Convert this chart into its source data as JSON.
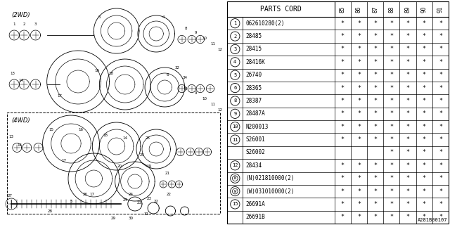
{
  "title": "A281B00107",
  "table_header": "PARTS CORD",
  "col_headers": [
    "85",
    "86",
    "87",
    "88",
    "89",
    "90",
    "91"
  ],
  "rows": [
    {
      "num": "1",
      "code": "062610280(2)",
      "stars": [
        1,
        1,
        1,
        1,
        1,
        1,
        1
      ],
      "circle": true,
      "sub": false,
      "prefix": ""
    },
    {
      "num": "2",
      "code": "28485",
      "stars": [
        1,
        1,
        1,
        1,
        1,
        1,
        1
      ],
      "circle": true,
      "sub": false,
      "prefix": ""
    },
    {
      "num": "3",
      "code": "28415",
      "stars": [
        1,
        1,
        1,
        1,
        1,
        1,
        1
      ],
      "circle": true,
      "sub": false,
      "prefix": ""
    },
    {
      "num": "4",
      "code": "28416K",
      "stars": [
        1,
        1,
        1,
        1,
        1,
        1,
        1
      ],
      "circle": true,
      "sub": false,
      "prefix": ""
    },
    {
      "num": "5",
      "code": "26740",
      "stars": [
        1,
        1,
        1,
        1,
        1,
        1,
        1
      ],
      "circle": true,
      "sub": false,
      "prefix": ""
    },
    {
      "num": "6",
      "code": "28365",
      "stars": [
        1,
        1,
        1,
        1,
        1,
        1,
        1
      ],
      "circle": true,
      "sub": false,
      "prefix": ""
    },
    {
      "num": "8",
      "code": "28387",
      "stars": [
        1,
        1,
        1,
        1,
        1,
        1,
        1
      ],
      "circle": true,
      "sub": false,
      "prefix": ""
    },
    {
      "num": "9",
      "code": "28487A",
      "stars": [
        1,
        1,
        1,
        1,
        1,
        1,
        1
      ],
      "circle": true,
      "sub": false,
      "prefix": ""
    },
    {
      "num": "10",
      "code": "N200013",
      "stars": [
        1,
        1,
        1,
        1,
        1,
        1,
        1
      ],
      "circle": true,
      "sub": false,
      "prefix": ""
    },
    {
      "num": "11",
      "code": "S26001",
      "stars": [
        1,
        1,
        1,
        1,
        1,
        1,
        1
      ],
      "circle": true,
      "sub": false,
      "prefix": ""
    },
    {
      "num": "11",
      "code": "S26002",
      "stars": [
        0,
        0,
        0,
        1,
        1,
        1,
        1
      ],
      "circle": false,
      "sub": true,
      "prefix": ""
    },
    {
      "num": "12",
      "code": "28434",
      "stars": [
        1,
        1,
        1,
        1,
        1,
        1,
        1
      ],
      "circle": true,
      "sub": false,
      "prefix": ""
    },
    {
      "num": "13",
      "code": "021810000(2)",
      "stars": [
        1,
        1,
        1,
        1,
        1,
        1,
        1
      ],
      "circle": true,
      "sub": false,
      "prefix": "N"
    },
    {
      "num": "14",
      "code": "031010000(2)",
      "stars": [
        1,
        1,
        1,
        1,
        1,
        1,
        1
      ],
      "circle": true,
      "sub": false,
      "prefix": "W"
    },
    {
      "num": "15",
      "code": "26691A",
      "stars": [
        1,
        1,
        1,
        1,
        1,
        1,
        1
      ],
      "circle": true,
      "sub": false,
      "prefix": ""
    },
    {
      "num": "15",
      "code": "26691B",
      "stars": [
        1,
        1,
        1,
        1,
        1,
        1,
        1
      ],
      "circle": false,
      "sub": true,
      "prefix": ""
    }
  ],
  "bg_color": "#ffffff",
  "line_color": "#000000",
  "text_color": "#000000",
  "star_char": "*",
  "diagram_label_2wd": "(2WD)",
  "diagram_label_4wd": "(4WD)"
}
